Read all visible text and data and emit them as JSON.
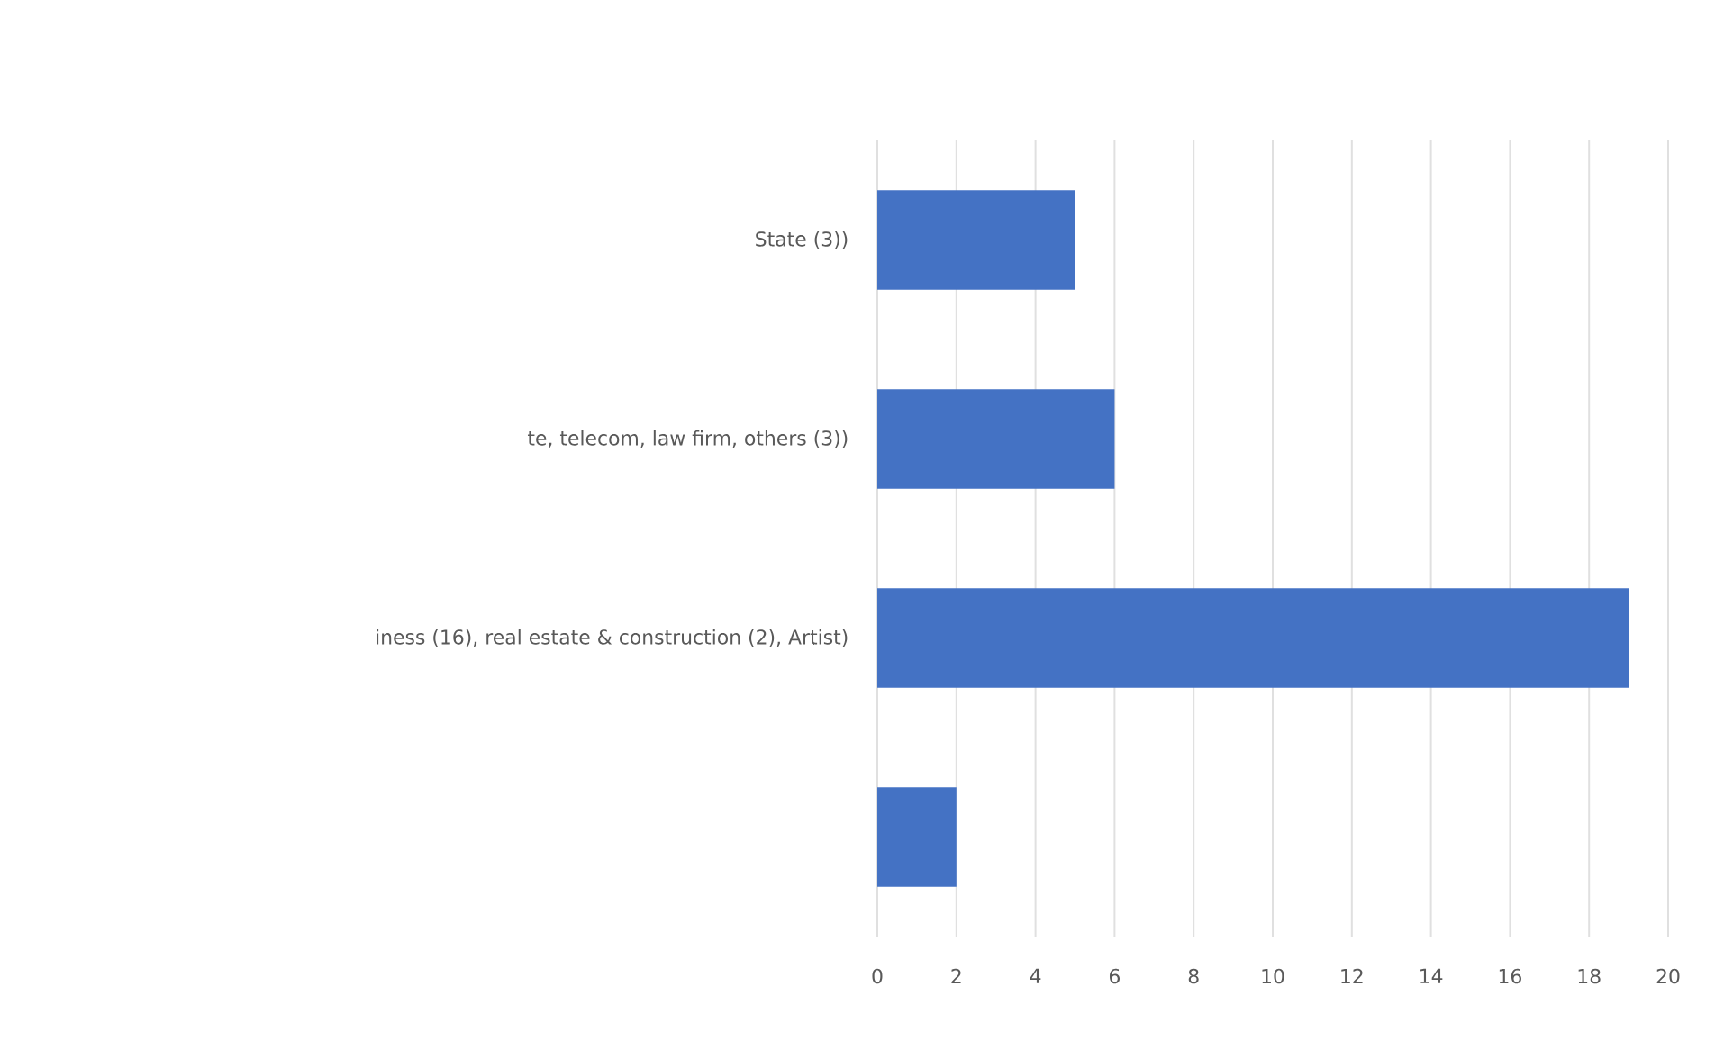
{
  "chart_data": {
    "type": "bar",
    "orientation": "horizontal",
    "categories": [
      "State (3))",
      "te, telecom, law firm, others (3))",
      "iness (16), real estate & construction (2), Artist)",
      null
    ],
    "values": [
      5,
      6,
      19,
      2
    ],
    "color": "#4472c4",
    "xlim": [
      0,
      20
    ],
    "xticks": [
      0,
      2,
      4,
      6,
      8,
      10,
      12,
      14,
      16,
      18,
      20
    ],
    "grid": "x"
  }
}
